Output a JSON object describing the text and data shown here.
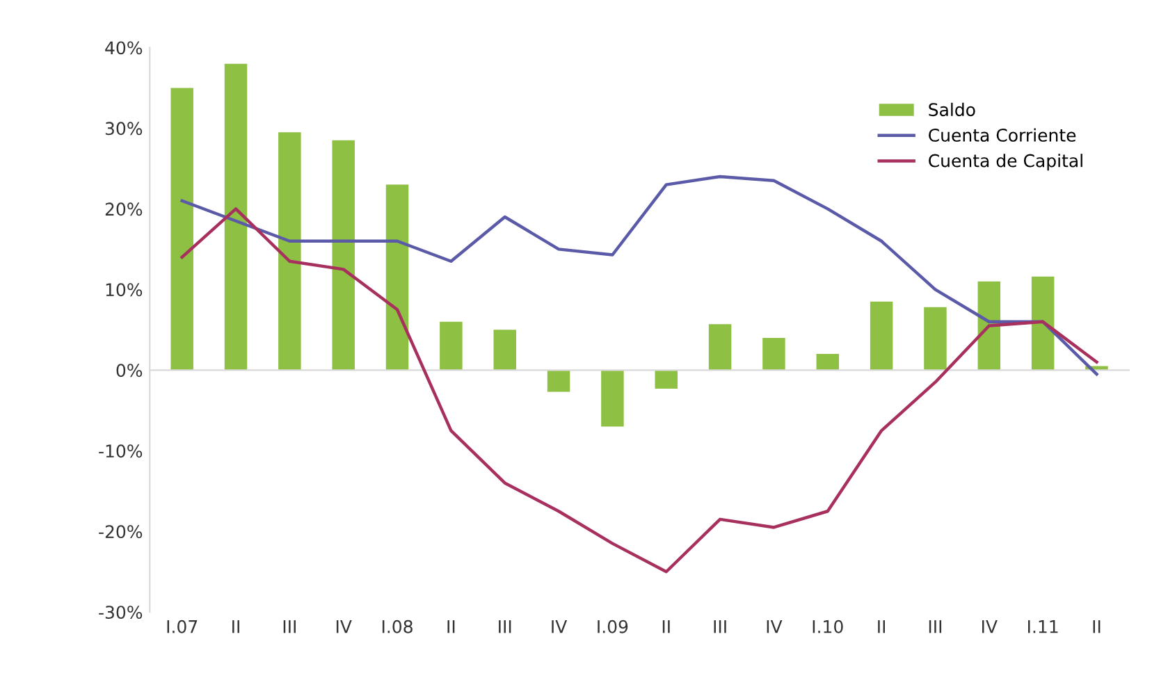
{
  "chart_data": {
    "type": "bar",
    "categories": [
      "I.07",
      "II",
      "III",
      "IV",
      "I.08",
      "II",
      "III",
      "IV",
      "I.09",
      "II",
      "III",
      "IV",
      "I.10",
      "II",
      "III",
      "IV",
      "I.11",
      "II"
    ],
    "series": [
      {
        "name": "Saldo",
        "color": "#8dc043",
        "values": [
          35,
          38,
          29.5,
          28.5,
          23,
          6,
          5,
          -2.7,
          -7,
          -2.3,
          5.7,
          4,
          2,
          8.5,
          7.8,
          11,
          11.6,
          0.5
        ]
      },
      {
        "name": "Cuenta Corriente",
        "type": "line",
        "color": "#5a5aa8",
        "values": [
          21,
          18.5,
          16,
          16,
          16,
          13.5,
          19,
          15,
          14.3,
          23,
          24,
          23.5,
          20,
          16,
          10,
          6,
          6,
          -0.5
        ]
      },
      {
        "name": "Cuenta de Capital",
        "type": "line",
        "color": "#a8305e",
        "values": [
          14,
          20,
          13.5,
          12.5,
          7.5,
          -7.5,
          -14,
          -17.5,
          -21.5,
          -25,
          -18.5,
          -19.5,
          -17.5,
          -7.5,
          -1.5,
          5.5,
          6,
          1
        ]
      }
    ],
    "ylim": [
      -30,
      40
    ],
    "yticks": [
      {
        "value": -30,
        "label": "-30%"
      },
      {
        "value": -20,
        "label": "-20%"
      },
      {
        "value": -10,
        "label": "-10%"
      },
      {
        "value": 0,
        "label": "0%"
      },
      {
        "value": 10,
        "label": "10%"
      },
      {
        "value": 20,
        "label": "20%"
      },
      {
        "value": 30,
        "label": "30%"
      },
      {
        "value": 40,
        "label": "40%"
      }
    ],
    "legend": "top right",
    "marker": "none",
    "line_style": "solid"
  }
}
